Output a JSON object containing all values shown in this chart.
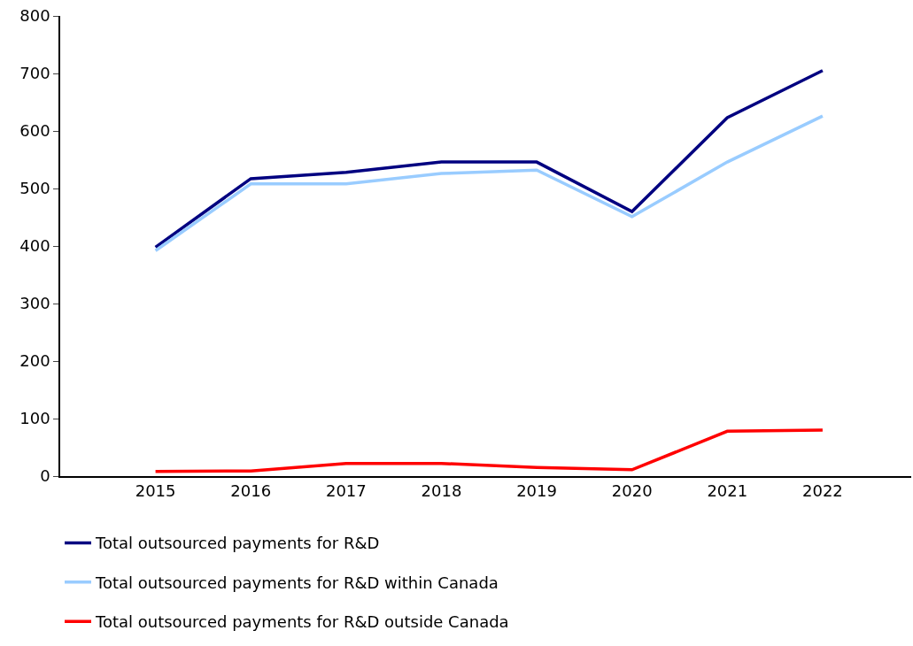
{
  "chart_data": {
    "type": "line",
    "categories": [
      "2015",
      "2016",
      "2017",
      "2018",
      "2019",
      "2020",
      "2021",
      "2022"
    ],
    "series": [
      {
        "name": "Total outsourced payments for R&D",
        "color": "#000080",
        "values": [
          398,
          517,
          528,
          546,
          546,
          460,
          623,
          705
        ]
      },
      {
        "name": "Total outsourced payments for R&D within Canada",
        "color": "#99ccff",
        "values": [
          392,
          508,
          508,
          526,
          532,
          451,
          546,
          626
        ]
      },
      {
        "name": "Total outsourced payments for R&D outside Canada",
        "color": "#ff0000",
        "values": [
          8,
          9,
          22,
          22,
          15,
          11,
          78,
          80
        ]
      }
    ],
    "ylim": [
      0,
      800
    ],
    "yticks": [
      0,
      100,
      200,
      300,
      400,
      500,
      600,
      700,
      800
    ],
    "legend": "bottom",
    "marker": "none",
    "line_style": "solid"
  }
}
